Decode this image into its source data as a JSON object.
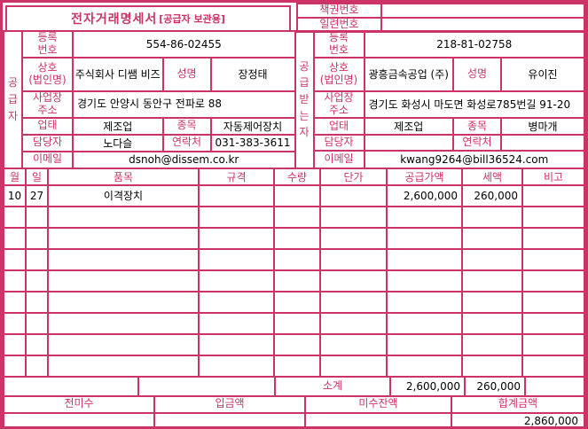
{
  "colors": {
    "accent": "#cc3366",
    "text": "#000000",
    "background": "#ffffff"
  },
  "header": {
    "title": "전자거래명세서",
    "title_suffix": "[공급자 보관용]",
    "book_number_label": "책권번호",
    "book_number_value": "",
    "serial_number_label": "일련번호",
    "serial_number_value": ""
  },
  "supplier": {
    "side_label": "공급자",
    "registration_label": "등록\n번호",
    "registration_value": "554-86-02455",
    "company_label": "상호\n(법인명)",
    "company_value": "주식회사 디쌤 비즈",
    "ceo_label": "성명",
    "ceo_value": "장정태",
    "address_label": "사업장\n주소",
    "address_value": "경기도 안양시 동안구 전파로 88",
    "business_type_label": "업태",
    "business_type_value": "제조업",
    "business_item_label": "종목",
    "business_item_value": "자동제어장치",
    "manager_label": "담당자",
    "manager_value": "노다슬",
    "contact_label": "연락처",
    "contact_value": "031-383-3611",
    "email_label": "이메일",
    "email_value": "dsnoh@dissem.co.kr"
  },
  "buyer": {
    "side_label": "공급받는자",
    "registration_label": "등록\n번호",
    "registration_value": "218-81-02758",
    "company_label": "상호\n(법인명)",
    "company_value": "광흥금속공업 (주)",
    "ceo_label": "성명",
    "ceo_value": "유이진",
    "address_label": "사업장\n주소",
    "address_value": "경기도 화성시 마도면 화성로785번길 91-20",
    "business_type_label": "업태",
    "business_type_value": "제조업",
    "business_item_label": "종목",
    "business_item_value": "병마개",
    "manager_label": "담당자",
    "manager_value": "",
    "contact_label": "연락처",
    "contact_value": "",
    "email_label": "이메일",
    "email_value": "kwang9264@bill36524.com"
  },
  "items": {
    "columns": [
      "월",
      "일",
      "품목",
      "규격",
      "수량",
      "단가",
      "공급가액",
      "세액",
      "비고"
    ],
    "rows": [
      {
        "month": "10",
        "day": "27",
        "item": "이격장치",
        "spec": "",
        "qty": "",
        "unit_price": "",
        "supply": "2,600,000",
        "tax": "260,000",
        "note": ""
      },
      {
        "month": "",
        "day": "",
        "item": "",
        "spec": "",
        "qty": "",
        "unit_price": "",
        "supply": "",
        "tax": "",
        "note": ""
      },
      {
        "month": "",
        "day": "",
        "item": "",
        "spec": "",
        "qty": "",
        "unit_price": "",
        "supply": "",
        "tax": "",
        "note": ""
      },
      {
        "month": "",
        "day": "",
        "item": "",
        "spec": "",
        "qty": "",
        "unit_price": "",
        "supply": "",
        "tax": "",
        "note": ""
      },
      {
        "month": "",
        "day": "",
        "item": "",
        "spec": "",
        "qty": "",
        "unit_price": "",
        "supply": "",
        "tax": "",
        "note": ""
      },
      {
        "month": "",
        "day": "",
        "item": "",
        "spec": "",
        "qty": "",
        "unit_price": "",
        "supply": "",
        "tax": "",
        "note": ""
      },
      {
        "month": "",
        "day": "",
        "item": "",
        "spec": "",
        "qty": "",
        "unit_price": "",
        "supply": "",
        "tax": "",
        "note": ""
      },
      {
        "month": "",
        "day": "",
        "item": "",
        "spec": "",
        "qty": "",
        "unit_price": "",
        "supply": "",
        "tax": "",
        "note": ""
      },
      {
        "month": "",
        "day": "",
        "item": "",
        "spec": "",
        "qty": "",
        "unit_price": "",
        "supply": "",
        "tax": "",
        "note": ""
      }
    ],
    "subtotal_label": "소계",
    "subtotal_supply": "2,600,000",
    "subtotal_tax": "260,000"
  },
  "footer": {
    "previous_balance_label": "전미수",
    "previous_balance_value": "",
    "deposit_label": "입금액",
    "deposit_value": "",
    "outstanding_label": "미수잔액",
    "outstanding_value": "",
    "total_label": "합계금액",
    "total_value": "2,860,000"
  }
}
